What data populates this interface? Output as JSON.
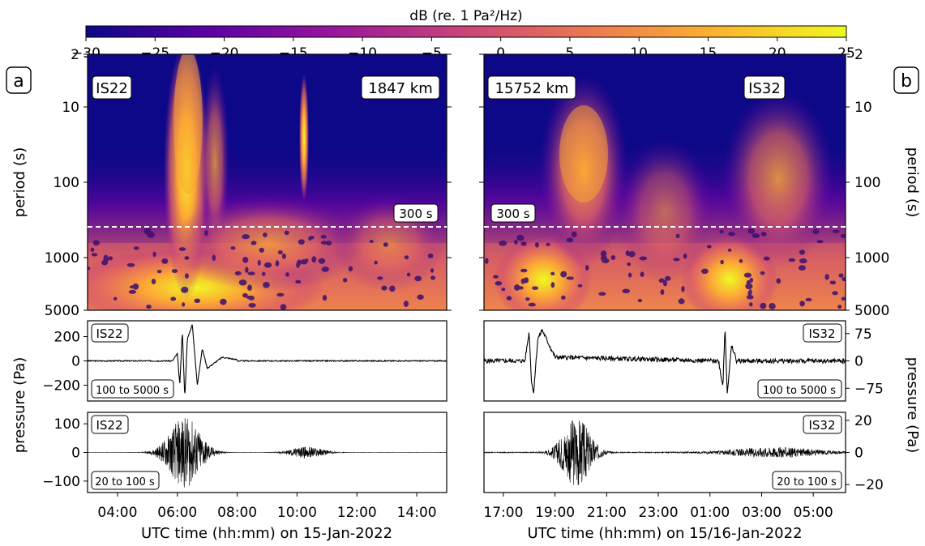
{
  "colorbar": {
    "label": "dB (re. 1 Pa²/Hz)",
    "ticks": [
      "−30",
      "−25",
      "−20",
      "−15",
      "−10",
      "−5",
      "0",
      "5",
      "10",
      "15",
      "20",
      "25"
    ],
    "range": [
      -30,
      25
    ],
    "colormap": [
      "#0d0887",
      "#5b02a3",
      "#9a179b",
      "#cb4678",
      "#eb7852",
      "#fbb32f",
      "#f0f921"
    ]
  },
  "panels": {
    "a": {
      "letter": "a",
      "station": "IS22",
      "distance": "1847 km",
      "period_ticks": [
        "2",
        "10",
        "100",
        "1000",
        "5000"
      ],
      "period_line_label": "300 s",
      "band_low": "100 to 5000 s",
      "band_high": "20 to 100 s",
      "lp_ticks": [
        "200",
        "0",
        "−200"
      ],
      "hp_ticks": [
        "100",
        "0",
        "−100"
      ],
      "time_ticks": [
        "04:00",
        "06:00",
        "08:00",
        "10:00",
        "12:00",
        "14:00"
      ],
      "xlabel": "UTC time (hh:mm) on 15-Jan-2022"
    },
    "b": {
      "letter": "b",
      "station": "IS32",
      "distance": "15752 km",
      "period_ticks": [
        "2",
        "10",
        "100",
        "1000",
        "5000"
      ],
      "period_line_label": "300 s",
      "band_low": "100 to 5000 s",
      "band_high": "20 to 100 s",
      "lp_ticks": [
        "75",
        "0",
        "−75"
      ],
      "hp_ticks": [
        "20",
        "0",
        "−20"
      ],
      "time_ticks": [
        "17:00",
        "19:00",
        "21:00",
        "23:00",
        "01:00",
        "03:00",
        "05:00"
      ],
      "xlabel": "UTC time (hh:mm) on 15/16-Jan-2022"
    }
  },
  "ylabel_period": "period (s)",
  "ylabel_pressure": "pressure (Pa)",
  "chart_data": [
    {
      "type": "heatmap",
      "panel": "a",
      "title": "IS22",
      "xlabel": "UTC time (hh:mm) on 15-Jan-2022",
      "ylabel": "period (s)",
      "xlim": [
        "03:00",
        "15:00"
      ],
      "ylim": [
        2,
        5000
      ],
      "yscale": "log",
      "reference_line_period_s": 300,
      "zlabel": "dB (re. 1 Pa²/Hz)",
      "zlim": [
        -30,
        25
      ],
      "energy_bursts": [
        {
          "time": "06:10",
          "period_range_s": [
            2,
            5000
          ],
          "peak_db": 25
        },
        {
          "time": "10:20",
          "period_range_s": [
            2,
            60
          ],
          "peak_db": 15
        }
      ]
    },
    {
      "type": "heatmap",
      "panel": "b",
      "title": "IS32",
      "xlabel": "UTC time (hh:mm) on 15/16-Jan-2022",
      "ylabel": "period (s)",
      "xlim": [
        "16:15",
        "06:15"
      ],
      "ylim": [
        2,
        5000
      ],
      "yscale": "log",
      "reference_line_period_s": 300,
      "zlabel": "dB (re. 1 Pa²/Hz)",
      "zlim": [
        -30,
        25
      ],
      "energy_bursts": [
        {
          "time": "18:30",
          "period_range_s": [
            10,
            5000
          ],
          "peak_db": 20
        },
        {
          "time": "01:45",
          "period_range_s": [
            10,
            5000
          ],
          "peak_db": 18
        }
      ]
    },
    {
      "type": "line",
      "panel": "a",
      "name": "IS22",
      "band": "100 to 5000 s",
      "ylabel": "pressure (Pa)",
      "ylim": [
        -330,
        330
      ],
      "x": [
        "05:50",
        "06:00",
        "06:05",
        "06:10",
        "06:15",
        "06:20",
        "06:30",
        "06:40",
        "06:50",
        "07:00",
        "07:30",
        "08:00"
      ],
      "y": [
        0,
        60,
        -200,
        250,
        -310,
        180,
        300,
        -200,
        100,
        -60,
        30,
        10
      ]
    },
    {
      "type": "line",
      "panel": "b",
      "name": "IS32",
      "band": "100 to 5000 s",
      "ylabel": "pressure (Pa)",
      "ylim": [
        -110,
        110
      ],
      "x": [
        "17:50",
        "18:00",
        "18:05",
        "18:10",
        "18:20",
        "18:30",
        "19:00",
        "01:20",
        "01:30",
        "01:35",
        "01:40",
        "01:50",
        "02:00"
      ],
      "y": [
        0,
        80,
        -50,
        -90,
        60,
        85,
        10,
        0,
        -70,
        95,
        -90,
        40,
        10
      ]
    },
    {
      "type": "line",
      "panel": "a",
      "name": "IS22",
      "band": "20 to 100 s",
      "ylabel": "pressure (Pa)",
      "ylim": [
        -140,
        140
      ],
      "bursts": [
        {
          "time": "06:15",
          "max_amplitude": 125
        },
        {
          "time": "10:20",
          "max_amplitude": 20
        }
      ]
    },
    {
      "type": "line",
      "panel": "b",
      "name": "IS32",
      "band": "20 to 100 s",
      "ylabel": "pressure (Pa)",
      "ylim": [
        -25,
        25
      ],
      "bursts": [
        {
          "time": "19:50",
          "max_amplitude": 22
        },
        {
          "time": "03:30",
          "max_amplitude": 3
        }
      ]
    }
  ]
}
